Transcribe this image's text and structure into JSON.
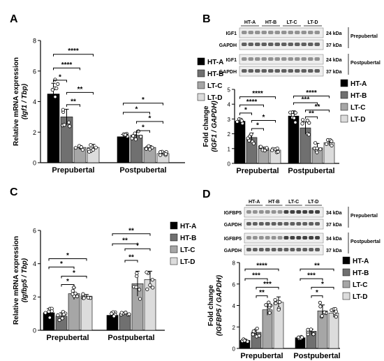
{
  "figure": {
    "colors": {
      "HT-A": "#000000",
      "HT-B": "#707070",
      "LT-C": "#a6a6a6",
      "LT-D": "#dcdcdc"
    }
  },
  "blots": {
    "B": {
      "groups": [
        "HT-A",
        "HT-B",
        "LT-C",
        "LT-D"
      ],
      "rows": [
        {
          "label": "IGF1",
          "kda": "24 kDa",
          "section": "Prepubertal"
        },
        {
          "label": "GAPDH",
          "kda": "37 kDa",
          "section": ""
        },
        {
          "label": "IGF1",
          "kda": "24 kDa",
          "section": "Postpubertal"
        },
        {
          "label": "GAPDH",
          "kda": "37 kDa",
          "section": ""
        }
      ]
    },
    "D": {
      "groups": [
        "HT-A",
        "HT-B",
        "LT-C",
        "LT-D"
      ],
      "rows": [
        {
          "label": "IGFBP5",
          "kda": "34 kDa",
          "section": "Prepubertal"
        },
        {
          "label": "GAPDH",
          "kda": "37 kDa",
          "section": ""
        },
        {
          "label": "IGFBP5",
          "kda": "34 kDa",
          "section": "Postpubertal"
        },
        {
          "label": "GAPDH",
          "kda": "37 kDa",
          "section": ""
        }
      ]
    }
  },
  "chart_data": [
    {
      "panel": "A",
      "type": "bar",
      "ylabel": "Relative mRNA expression",
      "ylabel2": "(Igf1 / Tbp)",
      "ylim": [
        0,
        8
      ],
      "yticks": [
        0,
        2,
        4,
        6,
        8
      ],
      "categories": [
        "Prepubertal",
        "Postpubertal"
      ],
      "series": [
        {
          "name": "HT-A",
          "values": [
            4.5,
            1.7
          ],
          "errors": [
            0.7,
            0.15
          ]
        },
        {
          "name": "HT-B",
          "values": [
            3.0,
            1.8
          ],
          "errors": [
            0.5,
            0.2
          ]
        },
        {
          "name": "LT-C",
          "values": [
            1.0,
            1.0
          ],
          "errors": [
            0.12,
            0.12
          ]
        },
        {
          "name": "LT-D",
          "values": [
            1.0,
            0.6
          ],
          "errors": [
            0.2,
            0.12
          ]
        }
      ],
      "sig": [
        {
          "cat": 0,
          "from": 0,
          "to": 3,
          "level": 7.1,
          "label": "****"
        },
        {
          "cat": 0,
          "from": 0,
          "to": 2,
          "level": 6.2,
          "label": "****"
        },
        {
          "cat": 0,
          "from": 0,
          "to": 1,
          "level": 5.4,
          "label": "*"
        },
        {
          "cat": 0,
          "from": 1,
          "to": 3,
          "level": 4.6,
          "label": "**"
        },
        {
          "cat": 0,
          "from": 1,
          "to": 2,
          "level": 3.8,
          "label": "**"
        },
        {
          "cat": 1,
          "from": 0,
          "to": 3,
          "level": 3.9,
          "label": "*"
        },
        {
          "cat": 1,
          "from": 0,
          "to": 2,
          "level": 3.3,
          "label": "*"
        },
        {
          "cat": 1,
          "from": 1,
          "to": 3,
          "level": 2.7,
          "label": "*"
        },
        {
          "cat": 1,
          "from": 1,
          "to": 2,
          "level": 2.1,
          "label": "*"
        }
      ]
    },
    {
      "panel": "B",
      "type": "bar",
      "ylabel": "Fold change",
      "ylabel2": "(IGF1 / GAPDH)",
      "ylim": [
        0,
        5
      ],
      "yticks": [
        0,
        1,
        2,
        3,
        4,
        5
      ],
      "categories": [
        "Prepubertal",
        "Postpubertal"
      ],
      "series": [
        {
          "name": "HT-A",
          "values": [
            2.85,
            3.2
          ],
          "errors": [
            0.15,
            0.35
          ]
        },
        {
          "name": "HT-B",
          "values": [
            1.75,
            2.4
          ],
          "errors": [
            0.3,
            0.4
          ]
        },
        {
          "name": "LT-C",
          "values": [
            1.0,
            1.05
          ],
          "errors": [
            0.1,
            0.3
          ]
        },
        {
          "name": "LT-D",
          "values": [
            0.9,
            1.4
          ],
          "errors": [
            0.12,
            0.2
          ]
        }
      ],
      "sig": [
        {
          "cat": 0,
          "from": 0,
          "to": 3,
          "level": 4.5,
          "label": "****"
        },
        {
          "cat": 0,
          "from": 0,
          "to": 2,
          "level": 3.95,
          "label": "****"
        },
        {
          "cat": 0,
          "from": 0,
          "to": 1,
          "level": 3.4,
          "label": "*"
        },
        {
          "cat": 0,
          "from": 1,
          "to": 3,
          "level": 2.9,
          "label": "*"
        },
        {
          "cat": 0,
          "from": 1,
          "to": 2,
          "level": 2.35,
          "label": "*"
        },
        {
          "cat": 1,
          "from": 0,
          "to": 3,
          "level": 4.55,
          "label": "****"
        },
        {
          "cat": 1,
          "from": 0,
          "to": 2,
          "level": 4.1,
          "label": "***"
        },
        {
          "cat": 1,
          "from": 1,
          "to": 3,
          "level": 3.6,
          "label": "**"
        },
        {
          "cat": 1,
          "from": 1,
          "to": 2,
          "level": 3.15,
          "label": "**"
        }
      ]
    },
    {
      "panel": "C",
      "type": "bar",
      "ylabel": "Relative mRNA expression",
      "ylabel2": "(Igfbp5 / Tbp)",
      "ylim": [
        0,
        6
      ],
      "yticks": [
        0,
        2,
        4,
        6
      ],
      "categories": [
        "Prepubertal",
        "Postpubertal"
      ],
      "series": [
        {
          "name": "HT-A",
          "values": [
            1.05,
            0.9
          ],
          "errors": [
            0.25,
            0.2
          ]
        },
        {
          "name": "HT-B",
          "values": [
            0.85,
            1.0
          ],
          "errors": [
            0.2,
            0.05
          ]
        },
        {
          "name": "LT-C",
          "values": [
            2.2,
            2.8
          ],
          "errors": [
            0.35,
            0.75
          ]
        },
        {
          "name": "LT-D",
          "values": [
            2.05,
            3.05
          ],
          "errors": [
            0.1,
            0.5
          ]
        }
      ],
      "sig": [
        {
          "cat": 0,
          "from": 0,
          "to": 3,
          "level": 4.3,
          "label": "*"
        },
        {
          "cat": 0,
          "from": 0,
          "to": 2,
          "level": 3.8,
          "label": "*"
        },
        {
          "cat": 0,
          "from": 1,
          "to": 3,
          "level": 3.25,
          "label": "*"
        },
        {
          "cat": 0,
          "from": 1,
          "to": 2,
          "level": 2.75,
          "label": "*"
        },
        {
          "cat": 1,
          "from": 0,
          "to": 3,
          "level": 5.8,
          "label": "**"
        },
        {
          "cat": 1,
          "from": 0,
          "to": 2,
          "level": 5.2,
          "label": "**"
        },
        {
          "cat": 1,
          "from": 1,
          "to": 3,
          "level": 4.9,
          "label": "*"
        },
        {
          "cat": 1,
          "from": 1,
          "to": 2,
          "level": 4.2,
          "label": "**"
        }
      ]
    },
    {
      "panel": "D",
      "type": "bar",
      "ylabel": "Fold change",
      "ylabel2": "(IGFBP5 / GAPDH)",
      "ylim": [
        0,
        8
      ],
      "yticks": [
        0,
        2,
        4,
        6,
        8
      ],
      "categories": [
        "Prepubertal",
        "Postpubertal"
      ],
      "series": [
        {
          "name": "HT-A",
          "values": [
            0.75,
            1.0
          ],
          "errors": [
            0.1,
            0.12
          ]
        },
        {
          "name": "HT-B",
          "values": [
            1.5,
            1.6
          ],
          "errors": [
            0.3,
            0.2
          ]
        },
        {
          "name": "LT-C",
          "values": [
            3.6,
            3.5
          ],
          "errors": [
            0.5,
            0.55
          ]
        },
        {
          "name": "LT-D",
          "values": [
            4.3,
            3.3
          ],
          "errors": [
            0.5,
            0.4
          ]
        }
      ],
      "sig": [
        {
          "cat": 0,
          "from": 0,
          "to": 3,
          "level": 7.4,
          "label": "****"
        },
        {
          "cat": 0,
          "from": 0,
          "to": 2,
          "level": 6.5,
          "label": "***"
        },
        {
          "cat": 0,
          "from": 1,
          "to": 3,
          "level": 5.7,
          "label": "***"
        },
        {
          "cat": 0,
          "from": 1,
          "to": 2,
          "level": 4.9,
          "label": "**"
        },
        {
          "cat": 1,
          "from": 0,
          "to": 3,
          "level": 7.4,
          "label": "**"
        },
        {
          "cat": 1,
          "from": 0,
          "to": 2,
          "level": 6.5,
          "label": "***"
        },
        {
          "cat": 1,
          "from": 1,
          "to": 3,
          "level": 5.7,
          "label": "*"
        },
        {
          "cat": 1,
          "from": 1,
          "to": 2,
          "level": 4.9,
          "label": "*"
        }
      ]
    }
  ]
}
